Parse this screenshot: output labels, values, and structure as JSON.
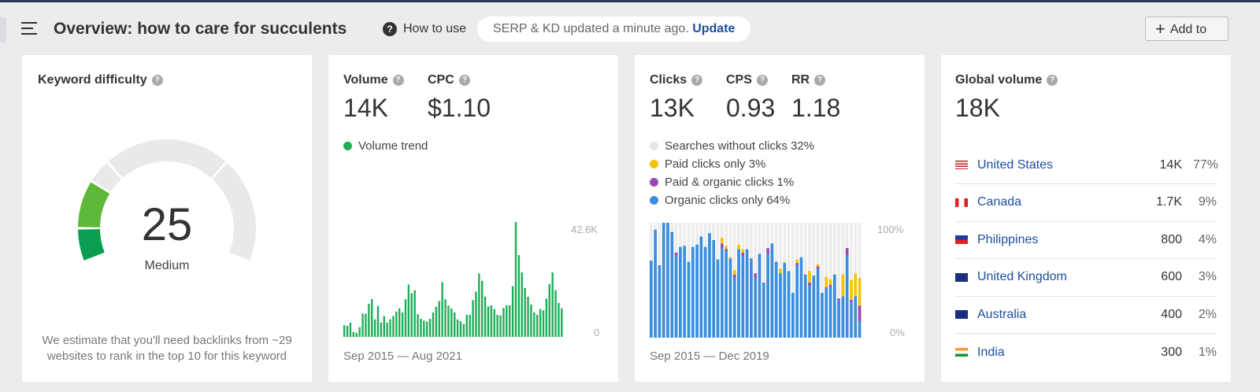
{
  "header": {
    "title": "Overview: how to care for succulents",
    "how_to_use": "How to use",
    "serp_status": "SERP & KD updated a minute ago.",
    "update_link": "Update",
    "add_to": "Add to"
  },
  "kd": {
    "label": "Keyword difficulty",
    "value": "25",
    "rating": "Medium",
    "score": 25,
    "description": "We estimate that you'll need backlinks from ~29 websites to rank in the top 10 for this keyword",
    "colors": {
      "low": "#0a9e50",
      "mid": "#5db83a",
      "empty": "#e8e9eb"
    }
  },
  "volume": {
    "label": "Volume",
    "value": "14K",
    "cpc_label": "CPC",
    "cpc_value": "$1.10",
    "trend_label": "Volume trend",
    "date_range": "Sep 2015 — Aug 2021",
    "color": "#1fad57"
  },
  "clicks": {
    "label": "Clicks",
    "value": "13K",
    "cps_label": "CPS",
    "cps_value": "0.93",
    "rr_label": "RR",
    "rr_value": "1.18",
    "date_range": "Sep 2015 — Dec 2019",
    "legend": [
      {
        "label": "Searches without clicks 32%",
        "color": "#e6e6e6"
      },
      {
        "label": "Paid clicks only 3%",
        "color": "#f5c400"
      },
      {
        "label": "Paid & organic clicks 1%",
        "color": "#9b4bb0"
      },
      {
        "label": "Organic clicks only 64%",
        "color": "#3a8ee0"
      }
    ]
  },
  "global": {
    "label": "Global volume",
    "value": "18K",
    "countries": [
      {
        "name": "United States",
        "volume": "14K",
        "share": "77%",
        "flag": "us"
      },
      {
        "name": "Canada",
        "volume": "1.7K",
        "share": "9%",
        "flag": "ca"
      },
      {
        "name": "Philippines",
        "volume": "800",
        "share": "4%",
        "flag": "ph"
      },
      {
        "name": "United Kingdom",
        "volume": "600",
        "share": "3%",
        "flag": "gb"
      },
      {
        "name": "Australia",
        "volume": "400",
        "share": "2%",
        "flag": "au"
      },
      {
        "name": "India",
        "volume": "300",
        "share": "1%",
        "flag": "in"
      }
    ]
  },
  "chart_data": [
    {
      "type": "bar",
      "title": "Volume trend",
      "x_range": [
        "Sep 2015",
        "Aug 2021"
      ],
      "ylim": [
        0,
        42.6
      ],
      "tick_labels": [
        "42.6K",
        "0"
      ],
      "values": [
        4.4,
        4.1,
        5.3,
        1.8,
        1.5,
        3.6,
        8.6,
        8.6,
        12.3,
        14.0,
        6.5,
        11.5,
        5.3,
        7.7,
        5.3,
        6.5,
        7.7,
        9.4,
        10.6,
        9.1,
        14.0,
        19.4,
        16.2,
        17.3,
        8.4,
        6.7,
        6.0,
        5.7,
        6.7,
        9.1,
        11.2,
        13.3,
        20.3,
        14.0,
        11.6,
        10.6,
        9.1,
        6.5,
        5.8,
        4.8,
        8.2,
        8.2,
        13.6,
        16.8,
        23.5,
        20.8,
        15.0,
        11.3,
        11.7,
        10.3,
        8.2,
        8.0,
        10.7,
        11.7,
        11.7,
        18.8,
        42.6,
        30.3,
        23.9,
        18.1,
        14.9,
        12.0,
        9.1,
        8.2,
        10.3,
        9.8,
        14.2,
        19.6,
        23.9,
        17.3,
        12.6,
        10.6
      ]
    },
    {
      "type": "bar",
      "stacked": true,
      "x_range": [
        "Sep 2015",
        "Dec 2019"
      ],
      "ylim": [
        0,
        100
      ],
      "tick_labels": [
        "100%",
        "0%"
      ],
      "series": [
        {
          "name": "Organic clicks only",
          "values": [
            67,
            94,
            63,
            100,
            100,
            92,
            71,
            79,
            80,
            66,
            79,
            81,
            88,
            79,
            91,
            85,
            68,
            78,
            75,
            69,
            52,
            77,
            71,
            77,
            69,
            52,
            73,
            48,
            73,
            82,
            66,
            56,
            65,
            58,
            39,
            63,
            70,
            55,
            45,
            54,
            60,
            39,
            43,
            44,
            55,
            32,
            36,
            71,
            31,
            36,
            14
          ]
        },
        {
          "name": "Paid & organic clicks",
          "values": [
            0,
            0,
            0,
            0,
            0,
            0,
            3,
            0,
            0,
            0,
            0,
            0,
            0,
            0,
            0,
            0,
            0,
            4,
            2,
            0,
            3,
            0,
            3,
            0,
            0,
            4,
            0,
            0,
            5,
            0,
            0,
            0,
            0,
            0,
            0,
            2,
            0,
            0,
            3,
            0,
            2,
            0,
            1,
            2,
            0,
            2,
            0,
            7,
            2,
            0,
            14
          ]
        },
        {
          "name": "Paid clicks only",
          "values": [
            0,
            0,
            0,
            0,
            0,
            0,
            0,
            0,
            0,
            0,
            0,
            0,
            0,
            0,
            0,
            0,
            0,
            5,
            3,
            1,
            4,
            4,
            3,
            0,
            0,
            0,
            0,
            0,
            0,
            0,
            0,
            4,
            1,
            0,
            0,
            3,
            0,
            0,
            10,
            0,
            2,
            0,
            9,
            5,
            0,
            0,
            19,
            0,
            17,
            20,
            24
          ]
        }
      ]
    }
  ]
}
